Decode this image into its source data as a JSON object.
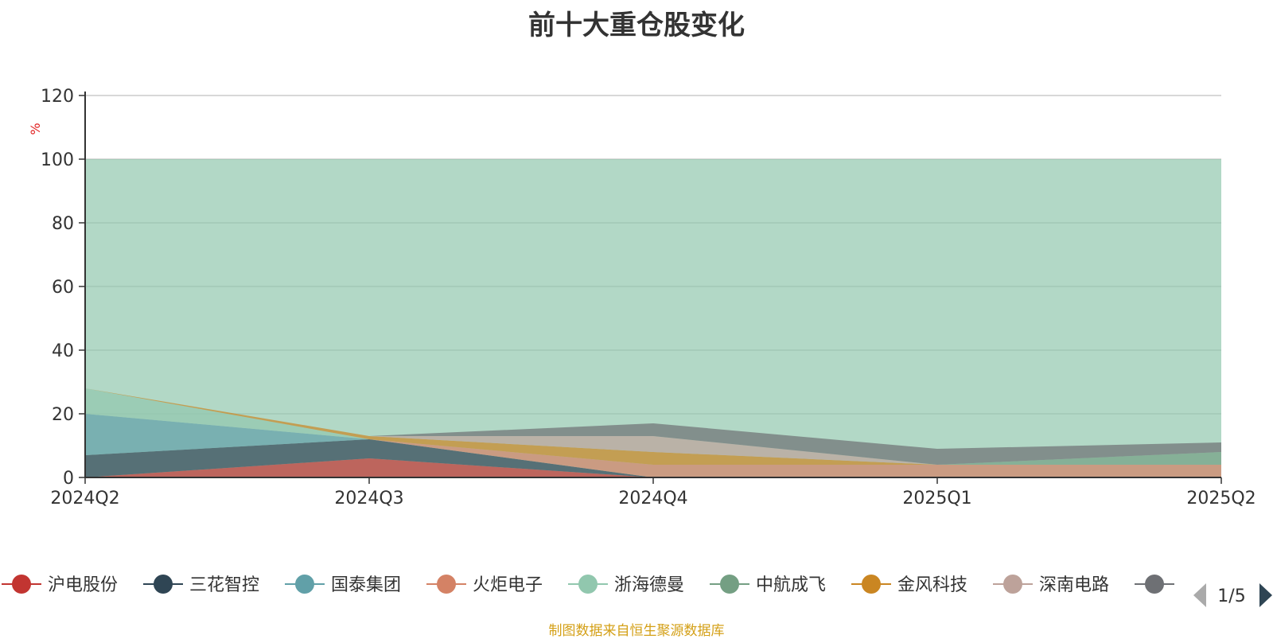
{
  "title": "前十大重仓股变化",
  "footer": "制图数据来自恒生聚源数据库",
  "legend_page": "1/5",
  "chart_data": {
    "type": "area",
    "stacked": true,
    "title": "前十大重仓股变化",
    "ylabel": "%",
    "xlabel": "",
    "ylim": [
      0,
      120
    ],
    "yticks": [
      0,
      20,
      40,
      60,
      80,
      100,
      120
    ],
    "categories": [
      "2024Q2",
      "2024Q3",
      "2024Q4",
      "2025Q1",
      "2025Q2"
    ],
    "grid": true,
    "legend": "bottom",
    "series": [
      {
        "name": "沪电股份",
        "color": "#c23531",
        "values": [
          0,
          6,
          0,
          0,
          0
        ]
      },
      {
        "name": "三花智控",
        "color": "#2f4554",
        "values": [
          7,
          6,
          0,
          0,
          0
        ]
      },
      {
        "name": "国泰集团",
        "color": "#61a0a8",
        "values": [
          13,
          0,
          0,
          0,
          0
        ]
      },
      {
        "name": "火炬电子",
        "color": "#d48265",
        "values": [
          0,
          0,
          4,
          4,
          4
        ]
      },
      {
        "name": "浙海德曼",
        "color": "#91c7ae",
        "values": [
          8,
          0,
          0,
          0,
          0
        ]
      },
      {
        "name": "中航成飞",
        "color": "#749f83",
        "values": [
          0,
          0,
          0,
          0,
          4
        ]
      },
      {
        "name": "金风科技",
        "color": "#ca8622",
        "values": [
          0,
          1,
          4,
          0,
          0
        ]
      },
      {
        "name": "深南电路",
        "color": "#bda29a",
        "values": [
          0,
          0,
          5,
          0,
          0
        ]
      },
      {
        "name": "",
        "color": "#6e7074",
        "values": [
          0,
          0,
          4,
          5,
          3
        ]
      }
    ],
    "total": [
      100,
      100,
      100,
      100,
      100
    ]
  }
}
